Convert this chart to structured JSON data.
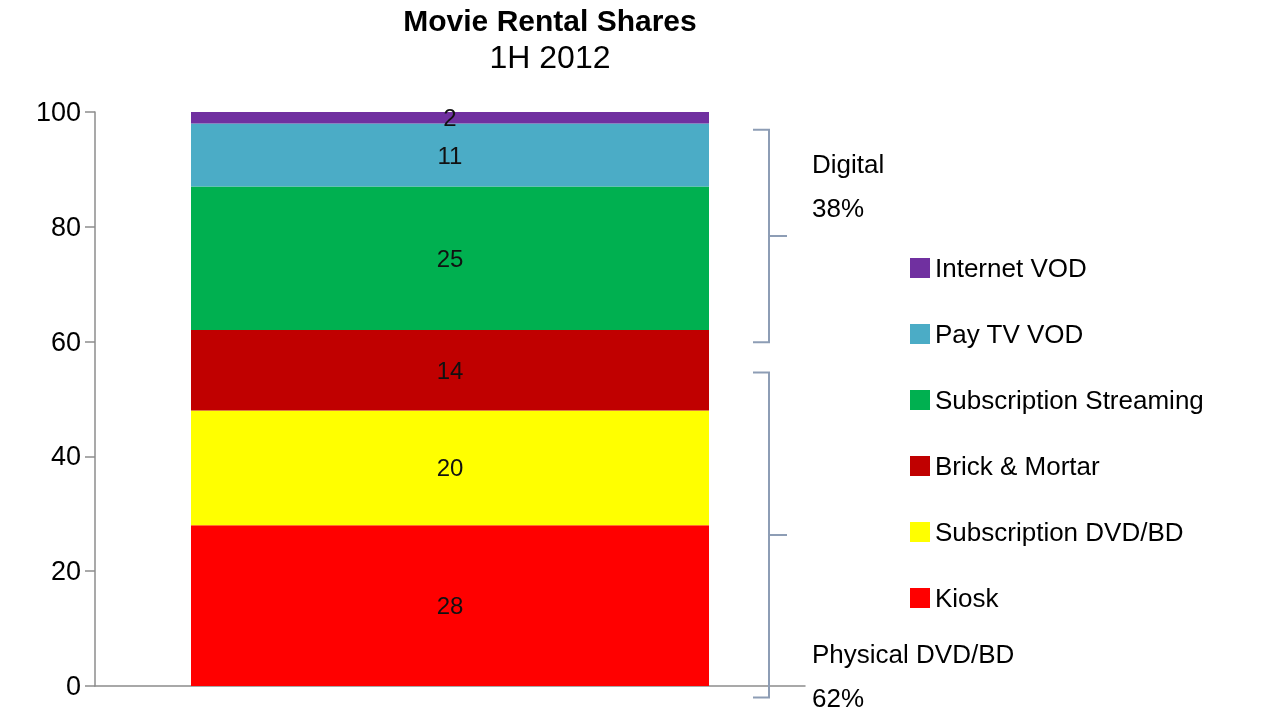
{
  "chart_data": {
    "type": "bar",
    "title": "Movie Rental Shares",
    "subtitle": "1H 2012",
    "categories": [
      null
    ],
    "stacked": true,
    "series": [
      {
        "name": "Kiosk",
        "color": "#ff0000",
        "values": [
          28
        ]
      },
      {
        "name": "Subscription DVD/BD",
        "color": "#ffff00",
        "values": [
          20
        ]
      },
      {
        "name": "Brick & Mortar",
        "color": "#c00000",
        "values": [
          14
        ]
      },
      {
        "name": "Subscription Streaming",
        "color": "#00b050",
        "values": [
          25
        ]
      },
      {
        "name": "Pay TV VOD",
        "color": "#4bacc6",
        "values": [
          11
        ]
      },
      {
        "name": "Internet VOD",
        "color": "#7030a0",
        "values": [
          2
        ]
      }
    ],
    "ylim": [
      0,
      100
    ],
    "yticks": [
      0,
      20,
      40,
      60,
      80,
      100
    ],
    "data_labels": true,
    "legend": "right",
    "annotations": [
      "Digital\n38%",
      "Physical DVD/BD\n62%"
    ]
  }
}
